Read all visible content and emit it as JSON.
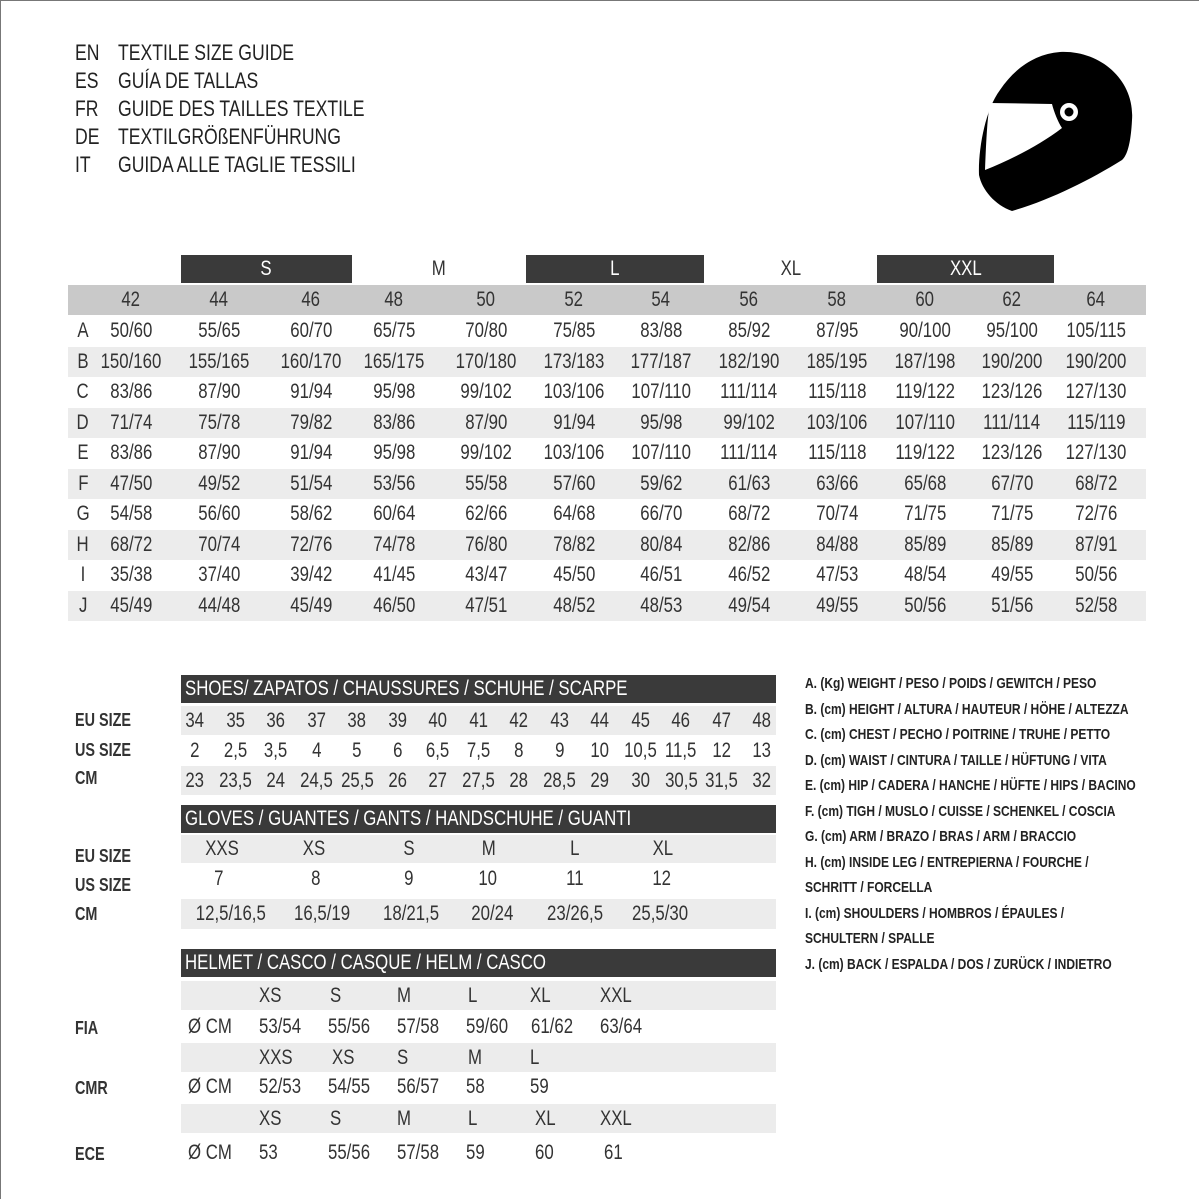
{
  "titles": [
    {
      "code": "EN",
      "text": "TEXTILE SIZE GUIDE"
    },
    {
      "code": "ES",
      "text": "GUÍA DE TALLAS"
    },
    {
      "code": "FR",
      "text": "GUIDE DES TAILLES TEXTILE"
    },
    {
      "code": "DE",
      "text": "TEXTILGRÖßENFÜHRUNG"
    },
    {
      "code": "IT",
      "text": "GUIDA ALLE TAGLIE TESSILI"
    }
  ],
  "logo_icon": "helmet-icon",
  "textile": {
    "bands": [
      "S",
      "M",
      "L",
      "XL",
      "XXL"
    ],
    "sizes": [
      "42",
      "44",
      "46",
      "48",
      "50",
      "52",
      "54",
      "56",
      "58",
      "60",
      "62",
      "64"
    ],
    "rows": [
      {
        "label": "A",
        "values": [
          "50/60",
          "55/65",
          "60/70",
          "65/75",
          "70/80",
          "75/85",
          "83/88",
          "85/92",
          "87/95",
          "90/100",
          "95/100",
          "105/115"
        ]
      },
      {
        "label": "B",
        "values": [
          "150/160",
          "155/165",
          "160/170",
          "165/175",
          "170/180",
          "173/183",
          "177/187",
          "182/190",
          "185/195",
          "187/198",
          "190/200",
          "190/200"
        ]
      },
      {
        "label": "C",
        "values": [
          "83/86",
          "87/90",
          "91/94",
          "95/98",
          "99/102",
          "103/106",
          "107/110",
          "111/114",
          "115/118",
          "119/122",
          "123/126",
          "127/130"
        ]
      },
      {
        "label": "D",
        "values": [
          "71/74",
          "75/78",
          "79/82",
          "83/86",
          "87/90",
          "91/94",
          "95/98",
          "99/102",
          "103/106",
          "107/110",
          "111/114",
          "115/119"
        ]
      },
      {
        "label": "E",
        "values": [
          "83/86",
          "87/90",
          "91/94",
          "95/98",
          "99/102",
          "103/106",
          "107/110",
          "111/114",
          "115/118",
          "119/122",
          "123/126",
          "127/130"
        ]
      },
      {
        "label": "F",
        "values": [
          "47/50",
          "49/52",
          "51/54",
          "53/56",
          "55/58",
          "57/60",
          "59/62",
          "61/63",
          "63/66",
          "65/68",
          "67/70",
          "68/72"
        ]
      },
      {
        "label": "G",
        "values": [
          "54/58",
          "56/60",
          "58/62",
          "60/64",
          "62/66",
          "64/68",
          "66/70",
          "68/72",
          "70/74",
          "71/75",
          "71/75",
          "72/76"
        ]
      },
      {
        "label": "H",
        "values": [
          "68/72",
          "70/74",
          "72/76",
          "74/78",
          "76/80",
          "78/82",
          "80/84",
          "82/86",
          "84/88",
          "85/89",
          "85/89",
          "87/91"
        ]
      },
      {
        "label": "I",
        "values": [
          "35/38",
          "37/40",
          "39/42",
          "41/45",
          "43/47",
          "45/50",
          "46/51",
          "46/52",
          "47/53",
          "48/54",
          "49/55",
          "50/56"
        ]
      },
      {
        "label": "J",
        "values": [
          "45/49",
          "44/48",
          "45/49",
          "46/50",
          "47/51",
          "48/52",
          "48/53",
          "49/54",
          "49/55",
          "50/56",
          "51/56",
          "52/58"
        ]
      }
    ]
  },
  "shoes": {
    "title": "SHOES/ ZAPATOS / CHAUSSURES / SCHUHE / SCARPE",
    "rows": [
      {
        "label": "EU SIZE",
        "values": [
          "34",
          "35",
          "36",
          "37",
          "38",
          "39",
          "40",
          "41",
          "42",
          "43",
          "44",
          "45",
          "46",
          "47",
          "48"
        ]
      },
      {
        "label": "US SIZE",
        "values": [
          "2",
          "2,5",
          "3,5",
          "4",
          "5",
          "6",
          "6,5",
          "7,5",
          "8",
          "9",
          "10",
          "10,5",
          "11,5",
          "12",
          "13"
        ]
      },
      {
        "label": "CM",
        "values": [
          "23",
          "23,5",
          "24",
          "24,5",
          "25,5",
          "26",
          "27",
          "27,5",
          "28",
          "28,5",
          "29",
          "30",
          "30,5",
          "31,5",
          "32"
        ]
      }
    ]
  },
  "gloves": {
    "title": "GLOVES / GUANTES / GANTS / HANDSCHUHE / GUANTI",
    "rows": [
      {
        "label": "EU SIZE",
        "values": [
          "XXS",
          "XS",
          "S",
          "M",
          "L",
          "XL"
        ]
      },
      {
        "label": "US SIZE",
        "values": [
          "7",
          "8",
          "9",
          "10",
          "11",
          "12"
        ]
      },
      {
        "label": "CM",
        "values": [
          "12,5/16,5",
          "16,5/19",
          "18/21,5",
          "20/24",
          "23/26,5",
          "25,5/30"
        ]
      }
    ]
  },
  "helmet": {
    "title": "HELMET / CASCO / CASQUE / HELM / CASCO",
    "unit": "Ø CM",
    "groups": [
      {
        "label": "FIA",
        "sizes": [
          "XS",
          "S",
          "M",
          "L",
          "XL",
          "XXL"
        ],
        "values": [
          "53/54",
          "55/56",
          "57/58",
          "59/60",
          "61/62",
          "63/64"
        ]
      },
      {
        "label": "CMR",
        "sizes": [
          "XXS",
          "XS",
          "S",
          "M",
          "L"
        ],
        "values": [
          "52/53",
          "54/55",
          "56/57",
          "58",
          "59"
        ]
      },
      {
        "label": "ECE",
        "sizes": [
          "XS",
          "S",
          "M",
          "L",
          "XL",
          "XXL"
        ],
        "values": [
          "53",
          "55/56",
          "57/58",
          "59",
          "60",
          "61"
        ]
      }
    ]
  },
  "legend": [
    "A. (Kg) WEIGHT / PESO / POIDS / GEWITCH / PESO",
    "B. (cm) HEIGHT / ALTURA / HAUTEUR / HÖHE / ALTEZZA",
    "C. (cm) CHEST / PECHO / POITRINE / TRUHE / PETTO",
    "D. (cm) WAIST / CINTURA / TAILLE / HÜFTUNG / VITA",
    "E. (cm) HIP / CADERA / HANCHE / HÜFTE / HIPS /  BACINO",
    "F.  (cm) TIGH / MUSLO / CUISSE / SCHENKEL / COSCIA",
    "G. (cm) ARM  / BRAZO / BRAS / ARM / BRACCIO",
    "H. (cm) INSIDE LEG / ENTREPIERNA / FOURCHE /",
    "SCHRITT / FORCELLA",
    "I.  (cm) SHOULDERS / HOMBROS / ÉPAULES /",
    "SCHULTERN / SPALLE",
    "J. (cm) BACK / ESPALDA / DOS / ZURÜCK / INDIETRO"
  ]
}
